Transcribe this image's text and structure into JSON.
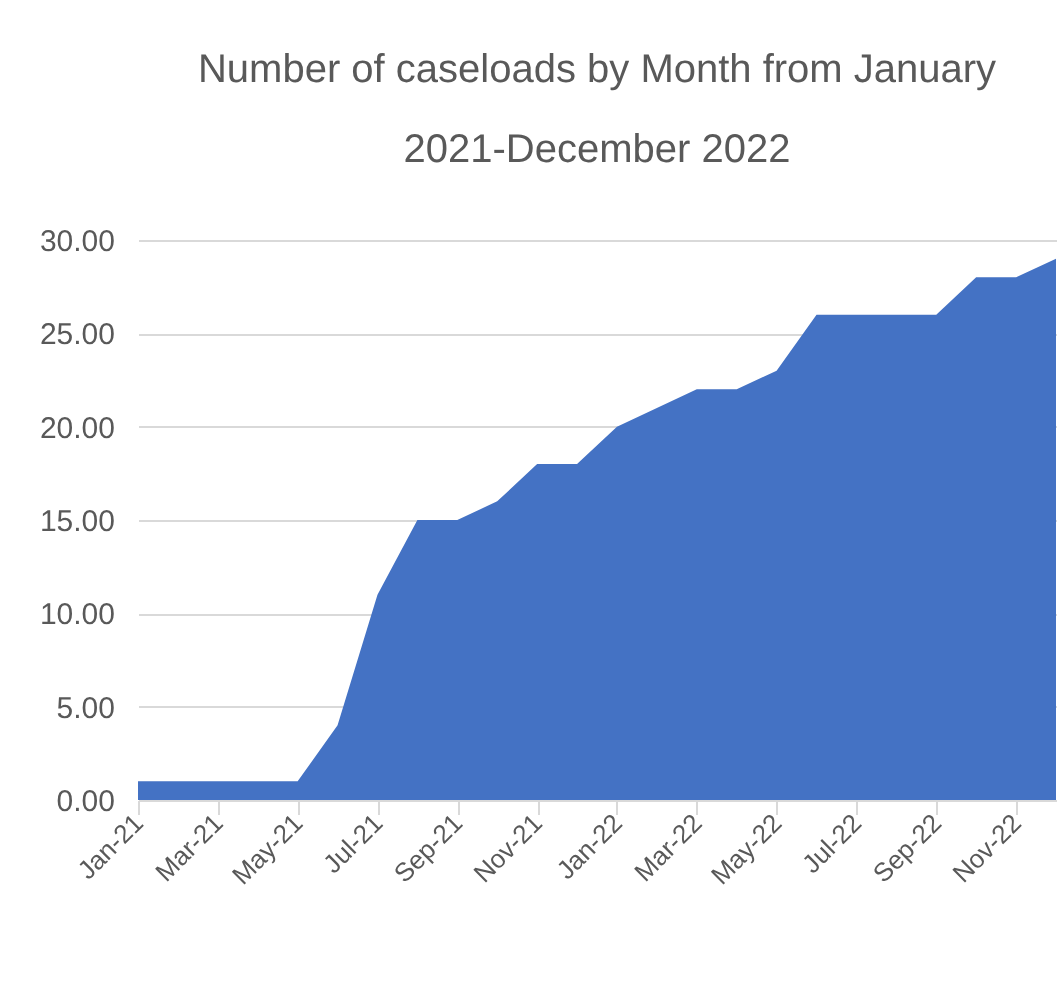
{
  "chart_data": {
    "type": "area",
    "title": "Number of caseloads by Month from January 2021-December 2022",
    "categories": [
      "Jan-21",
      null,
      "Mar-21",
      null,
      "May-21",
      null,
      "Jul-21",
      null,
      "Sep-21",
      null,
      "Nov-21",
      null,
      "Jan-22",
      null,
      "Mar-22",
      null,
      "May-22",
      null,
      "Jul-22",
      null,
      "Sep-22",
      null,
      "Nov-22",
      null
    ],
    "series": [
      {
        "color": "#4472c4",
        "values": [
          1,
          1,
          1,
          1,
          1,
          4,
          11,
          15,
          15,
          16,
          18,
          18,
          20,
          21,
          22,
          22,
          23,
          26,
          26,
          26,
          26,
          28,
          28,
          29
        ]
      }
    ],
    "ylim": [
      0,
      30
    ],
    "yticks": [
      {
        "value": 0,
        "label": "0.00"
      },
      {
        "value": 5,
        "label": "5.00"
      },
      {
        "value": 10,
        "label": "10.00"
      },
      {
        "value": 15,
        "label": "15.00"
      },
      {
        "value": 20,
        "label": "20.00"
      },
      {
        "value": 25,
        "label": "25.00"
      },
      {
        "value": 30,
        "label": "30.00"
      }
    ],
    "grid": "y"
  }
}
